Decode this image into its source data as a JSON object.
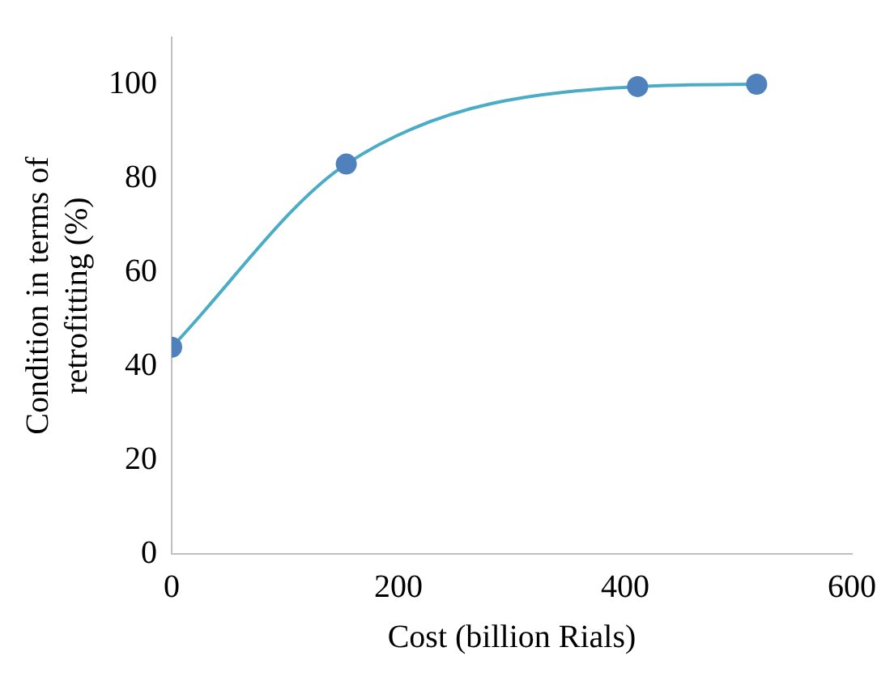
{
  "chart_data": {
    "type": "scatter",
    "xlabel": "Cost (billion Rials)",
    "ylabel": "Condition in terms of retrofitting (%)",
    "series": [
      {
        "type": "line",
        "color": "#4bacc6",
        "marker": "none",
        "x": [
          0,
          154,
          411,
          516
        ],
        "values": [
          44,
          83,
          99.5,
          100
        ]
      },
      {
        "color": "#4f81bd",
        "marker": "circle",
        "x": [
          0,
          154,
          411,
          516
        ],
        "values": [
          44,
          83,
          99.5,
          100
        ]
      }
    ],
    "xlim": [
      0,
      600
    ],
    "xticks": [
      0,
      200,
      400,
      600
    ],
    "ylim": [
      0,
      110
    ],
    "yticks": [
      0,
      20,
      40,
      60,
      80,
      100
    ],
    "grid": false,
    "legend": false
  }
}
